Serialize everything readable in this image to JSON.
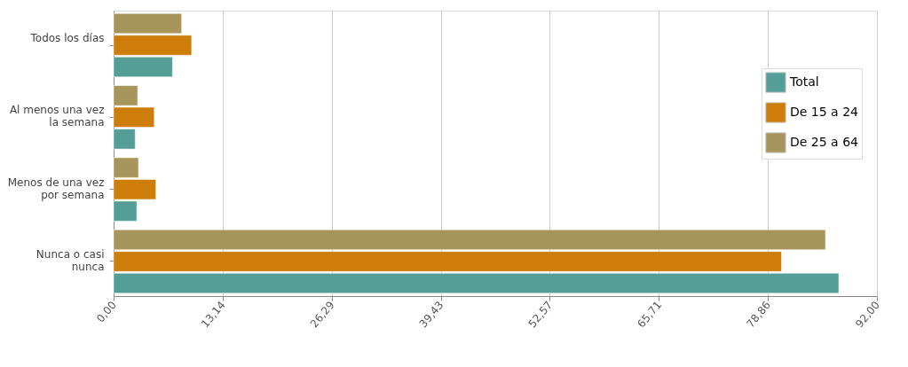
{
  "chart_data": {
    "type": "bar",
    "orientation": "horizontal",
    "categories": [
      "Todos los días",
      "Al menos una vez la semana",
      "Menos de una vez por semana",
      "Nunca o casi nunca"
    ],
    "series": [
      {
        "name": "Total",
        "color": "#559e97",
        "values": [
          7.1,
          2.6,
          2.8,
          87.4
        ]
      },
      {
        "name": "De 15 a 24",
        "color": "#cc7d0a",
        "values": [
          9.4,
          4.9,
          5.1,
          80.5
        ]
      },
      {
        "name": "De 25 a 64",
        "color": "#a8955b",
        "values": [
          8.2,
          2.9,
          3.0,
          85.8
        ]
      }
    ],
    "xlim": [
      0,
      92
    ],
    "xticks": [
      {
        "value": 0,
        "label": "0,00"
      },
      {
        "value": 13.14,
        "label": "13,14"
      },
      {
        "value": 26.29,
        "label": "26,29"
      },
      {
        "value": 39.43,
        "label": "39,43"
      },
      {
        "value": 52.57,
        "label": "52,57"
      },
      {
        "value": 65.71,
        "label": "65,71"
      },
      {
        "value": 78.86,
        "label": "78,86"
      },
      {
        "value": 92,
        "label": "92,00"
      }
    ],
    "grid": "x",
    "legend": "top right"
  }
}
